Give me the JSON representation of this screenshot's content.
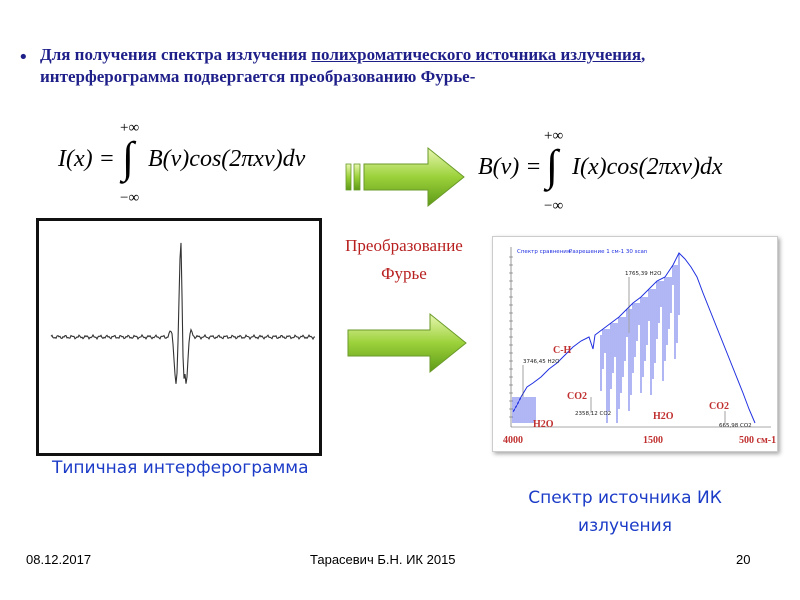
{
  "bullet": {
    "text_before": "Для получения спектра излучения ",
    "underlined": "полихроматического источника излучения",
    "text_after": ", интерферограмма  подвергается преобразованию Фурье-"
  },
  "formula_left": {
    "lhs": "I(x) =",
    "upper_limit": "+∞",
    "lower_limit": "−∞",
    "integrand": "B(v)cos(2πxv)dv"
  },
  "formula_right": {
    "lhs": "B(v) =",
    "upper_limit": "+∞",
    "lower_limit": "−∞",
    "integrand": "I(x)cos(2πxv)dx"
  },
  "fourier_label": {
    "line1": "Преобразование",
    "line2": "Фурье"
  },
  "interferogram_caption": "Типичная интерферограмма",
  "spectrum": {
    "header_left": "Спектр сравнения.",
    "header_right": "Разрешение 1 см-1  30 scan",
    "peak_label": "1765,39  H2O",
    "ch_point_label": "3746,45  H2O",
    "co2_point_label": "2358,12  CO2",
    "co2b_point_label": "665,98  CO2",
    "bands": {
      "ch": "C-H",
      "co2_left": "CO2",
      "h2o_left": "H2O",
      "h2o_mid": "H2O",
      "co2_right": "CO2"
    },
    "x_ticks": {
      "left": "4000",
      "mid": "1500",
      "right": "500 см-1"
    },
    "colors": {
      "line": "#2030e0",
      "band_label": "#c03030",
      "tick_label": "#c03030"
    }
  },
  "spectrum_caption": {
    "line1": "Спектр источника ИК",
    "line2": "излучения"
  },
  "footer": {
    "date": "08.12.2017",
    "author": "Тарасевич Б.Н.   ИК 2015",
    "page": "20"
  }
}
